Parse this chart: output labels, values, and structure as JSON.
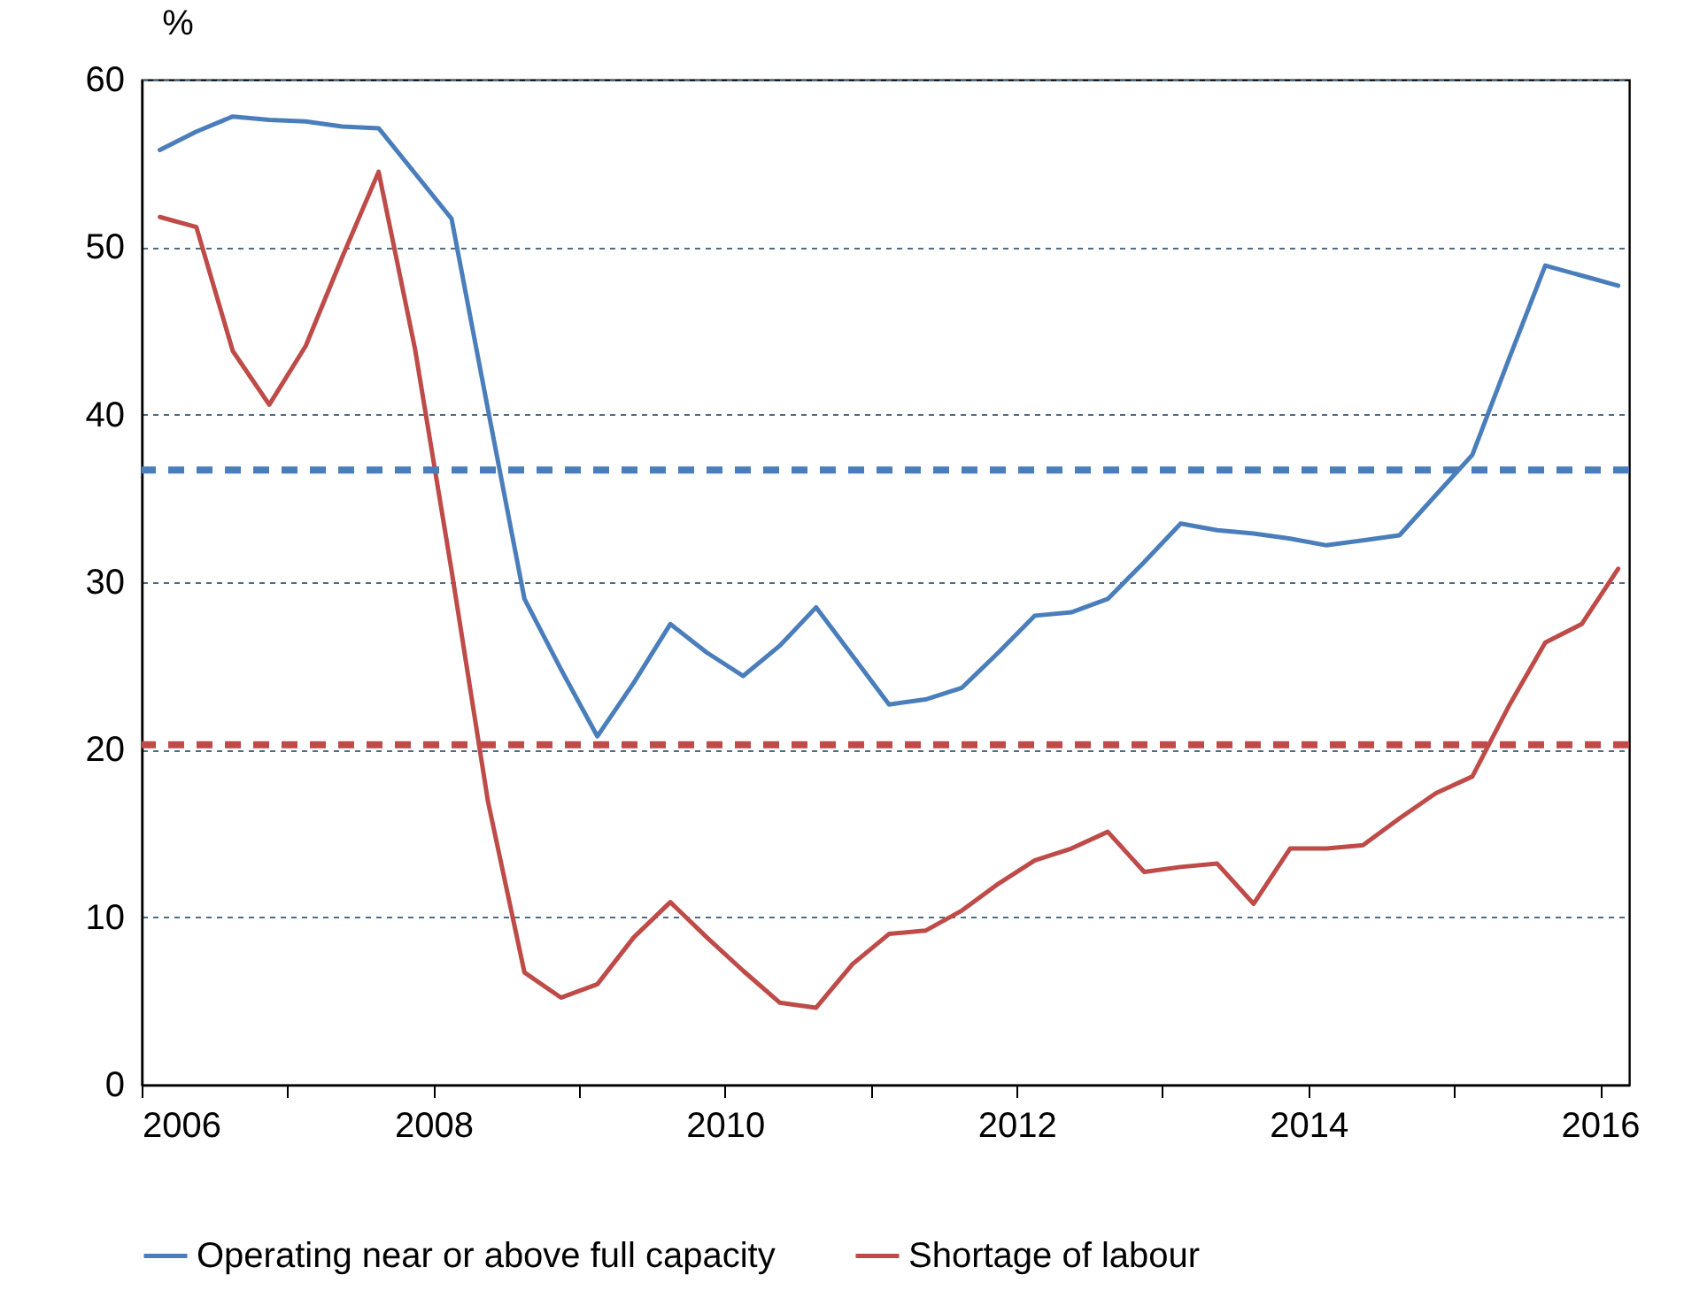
{
  "chart_data": {
    "type": "line",
    "ylabel": "%",
    "x": [
      2006.125,
      2006.375,
      2006.625,
      2006.875,
      2007.125,
      2007.375,
      2007.625,
      2007.875,
      2008.125,
      2008.375,
      2008.625,
      2008.875,
      2009.125,
      2009.375,
      2009.625,
      2009.875,
      2010.125,
      2010.375,
      2010.625,
      2010.875,
      2011.125,
      2011.375,
      2011.625,
      2011.875,
      2012.125,
      2012.375,
      2012.625,
      2012.875,
      2013.125,
      2013.375,
      2013.625,
      2013.875,
      2014.125,
      2014.375,
      2014.625,
      2014.875,
      2015.125,
      2015.375,
      2015.625,
      2015.875,
      2016.125
    ],
    "series": [
      {
        "name": "Operating near or above full capacity",
        "color": "#4a7ebb",
        "values": [
          55.8,
          56.9,
          57.8,
          57.6,
          57.5,
          57.2,
          57.1,
          54.4,
          51.7,
          40.3,
          29.0,
          24.8,
          20.8,
          24.0,
          27.5,
          25.8,
          24.4,
          26.2,
          28.5,
          25.6,
          22.7,
          23.0,
          23.7,
          25.8,
          28.0,
          28.2,
          29.0,
          31.2,
          33.5,
          33.1,
          32.9,
          32.6,
          32.2,
          32.5,
          32.8,
          35.2,
          37.6,
          43.3,
          48.9,
          48.3,
          47.7
        ]
      },
      {
        "name": "Shortage of labour",
        "color": "#be4b48",
        "values": [
          51.8,
          51.2,
          43.8,
          40.6,
          44.1,
          49.4,
          54.5,
          43.9,
          30.7,
          16.9,
          6.7,
          5.2,
          6.0,
          8.8,
          10.9,
          8.8,
          6.8,
          4.9,
          4.6,
          7.2,
          9.0,
          9.2,
          10.4,
          12.0,
          13.4,
          14.1,
          15.1,
          12.7,
          13.0,
          13.2,
          10.8,
          14.1,
          14.1,
          14.3,
          15.9,
          17.4,
          18.4,
          22.6,
          26.4,
          27.5,
          30.8
        ]
      }
    ],
    "xlim": [
      2006,
      2016.2
    ],
    "xticks": [
      2006,
      {
        "value": 2007,
        "label": null
      },
      2008,
      {
        "value": 2009,
        "label": null
      },
      2010,
      {
        "value": 2011,
        "label": null
      },
      2012,
      {
        "value": 2013,
        "label": null
      },
      2014,
      {
        "value": 2015,
        "label": null
      },
      2016
    ],
    "ylim": [
      0,
      60
    ],
    "yticks": [
      0,
      10,
      20,
      30,
      40,
      50,
      60
    ],
    "ref_lines": [
      {
        "axis": "y",
        "value": 36.7,
        "color": "#4a7ebb",
        "line_style": "dashed"
      },
      {
        "axis": "y",
        "value": 20.3,
        "color": "#be4b48",
        "line_style": "dashed"
      }
    ],
    "grid": "y",
    "legend": "bottom",
    "marker": "none",
    "line_style": "solid"
  }
}
